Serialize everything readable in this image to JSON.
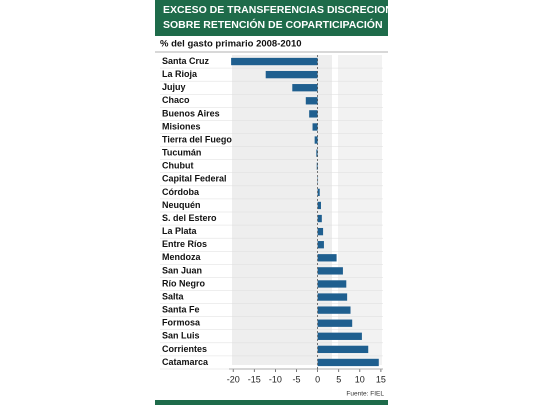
{
  "chart_data": {
    "type": "bar",
    "orientation": "horizontal",
    "title": "EXCESO DE TRANSFERENCIAS DISCRECIONALES SOBRE RETENCIÓN DE COPARTICIPACIÓN",
    "subtitle": "% del gasto primario 2008-2010",
    "source": "Fuente: FIEL",
    "categories": [
      "Santa Cruz",
      "La Rioja",
      "Jujuy",
      "Chaco",
      "Buenos Aires",
      "Misiones",
      "Tierra del Fuego",
      "Tucumán",
      "Chubut",
      "Capital Federal",
      "Córdoba",
      "Neuquén",
      "S. del Estero",
      "La Plata",
      "Entre Ríos",
      "Mendoza",
      "San Juan",
      "Río Negro",
      "Salta",
      "Santa Fe",
      "Formosa",
      "San Luis",
      "Corrientes",
      "Catamarca"
    ],
    "values": [
      -20.5,
      -12.3,
      -6,
      -2.8,
      -2,
      -1.2,
      -0.7,
      -0.3,
      -0.2,
      0.1,
      0.5,
      0.8,
      1,
      1.3,
      1.5,
      4.5,
      6,
      6.8,
      7,
      7.8,
      8.2,
      10.5,
      12,
      14.5
    ],
    "color": "#1f5f8f",
    "xlim": [
      -21,
      15.5
    ],
    "xticks": [
      -20,
      -15,
      -10,
      -5,
      0,
      5,
      10,
      15
    ],
    "grid": false
  }
}
